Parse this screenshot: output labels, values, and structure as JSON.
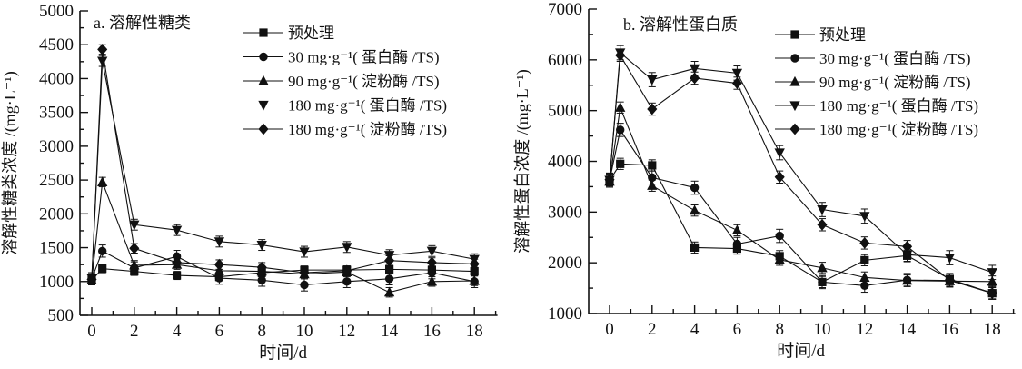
{
  "figure": {
    "background": "#ffffff",
    "ink_color": "#111111"
  },
  "chart_data": [
    {
      "id": "soluble-sugar",
      "type": "line",
      "title": "a. 溶解性糖类",
      "xlabel": "时间/d",
      "ylabel": "溶解性糖类浓度 /(mg·L⁻¹)",
      "xlim": [
        0,
        18
      ],
      "ylim": [
        500,
        5000
      ],
      "xtick_step": 2,
      "xminor_step": 1,
      "ytick_step": 500,
      "yminor_step": 250,
      "grid": false,
      "legend_position": "upper-right-inside",
      "marker_color": "#111111",
      "x": [
        0,
        0.5,
        2,
        4,
        6,
        8,
        10,
        12,
        14,
        16,
        18
      ],
      "series": [
        {
          "name": "预处理",
          "marker": "square",
          "err": 60,
          "values": [
            1020,
            1190,
            1150,
            1090,
            1070,
            1130,
            1170,
            1170,
            1180,
            1170,
            1150
          ]
        },
        {
          "name": "30 mg·g⁻¹( 蛋白酶 /TS)",
          "marker": "circle",
          "err": 90,
          "values": [
            1040,
            1450,
            1200,
            1370,
            1050,
            1020,
            950,
            1000,
            1040,
            1130,
            1000
          ]
        },
        {
          "name": "90 mg·g⁻¹( 淀粉酶 /TS)",
          "marker": "triangle-up",
          "err": 70,
          "values": [
            1020,
            2470,
            1240,
            1250,
            1160,
            1150,
            1110,
            1140,
            840,
            1000,
            1010
          ]
        },
        {
          "name": "180 mg·g⁻¹( 蛋白酶 /TS)",
          "marker": "triangle-down",
          "err": 80,
          "values": [
            1050,
            4260,
            1840,
            1760,
            1590,
            1540,
            1440,
            1510,
            1390,
            1450,
            1330
          ]
        },
        {
          "name": "180 mg·g⁻¹( 淀粉酶 /TS)",
          "marker": "diamond",
          "err": 70,
          "values": [
            1030,
            4430,
            1490,
            1280,
            1250,
            1210,
            1130,
            1160,
            1310,
            1280,
            1260
          ]
        }
      ]
    },
    {
      "id": "soluble-protein",
      "type": "line",
      "title": "b. 溶解性蛋白质",
      "xlabel": "时间/d",
      "ylabel": "溶解性蛋白浓度 /(mg·L⁻¹)",
      "xlim": [
        0,
        18
      ],
      "ylim": [
        1000,
        7000
      ],
      "xtick_step": 2,
      "xminor_step": 1,
      "ytick_step": 1000,
      "yminor_step": 500,
      "grid": false,
      "legend_position": "upper-right-inside",
      "marker_color": "#111111",
      "x": [
        0,
        0.5,
        2,
        4,
        6,
        8,
        10,
        12,
        14,
        16,
        18
      ],
      "series": [
        {
          "name": "预处理",
          "marker": "square",
          "err": 110,
          "values": [
            3620,
            3950,
            3920,
            2300,
            2280,
            2130,
            1620,
            2050,
            2140,
            1680,
            1400
          ]
        },
        {
          "name": "30 mg·g⁻¹( 蛋白酶 /TS)",
          "marker": "circle",
          "err": 130,
          "values": [
            3620,
            4620,
            3680,
            3480,
            2370,
            2530,
            1620,
            1550,
            1660,
            1650,
            1410
          ]
        },
        {
          "name": "90 mg·g⁻¹( 淀粉酶 /TS)",
          "marker": "triangle-up",
          "err": 110,
          "values": [
            3600,
            5060,
            3520,
            3030,
            2640,
            2060,
            1900,
            1710,
            1650,
            1640,
            1630
          ]
        },
        {
          "name": "180 mg·g⁻¹( 蛋白酶 /TS)",
          "marker": "triangle-down",
          "err": 140,
          "values": [
            3630,
            6140,
            5610,
            5830,
            5740,
            4170,
            3050,
            2920,
            2160,
            2100,
            1810
          ]
        },
        {
          "name": "180 mg·g⁻¹( 淀粉酶 /TS)",
          "marker": "diamond",
          "err": 120,
          "values": [
            3640,
            6090,
            5030,
            5640,
            5540,
            3690,
            2750,
            2390,
            2320,
            1660,
            1400
          ]
        }
      ]
    }
  ]
}
